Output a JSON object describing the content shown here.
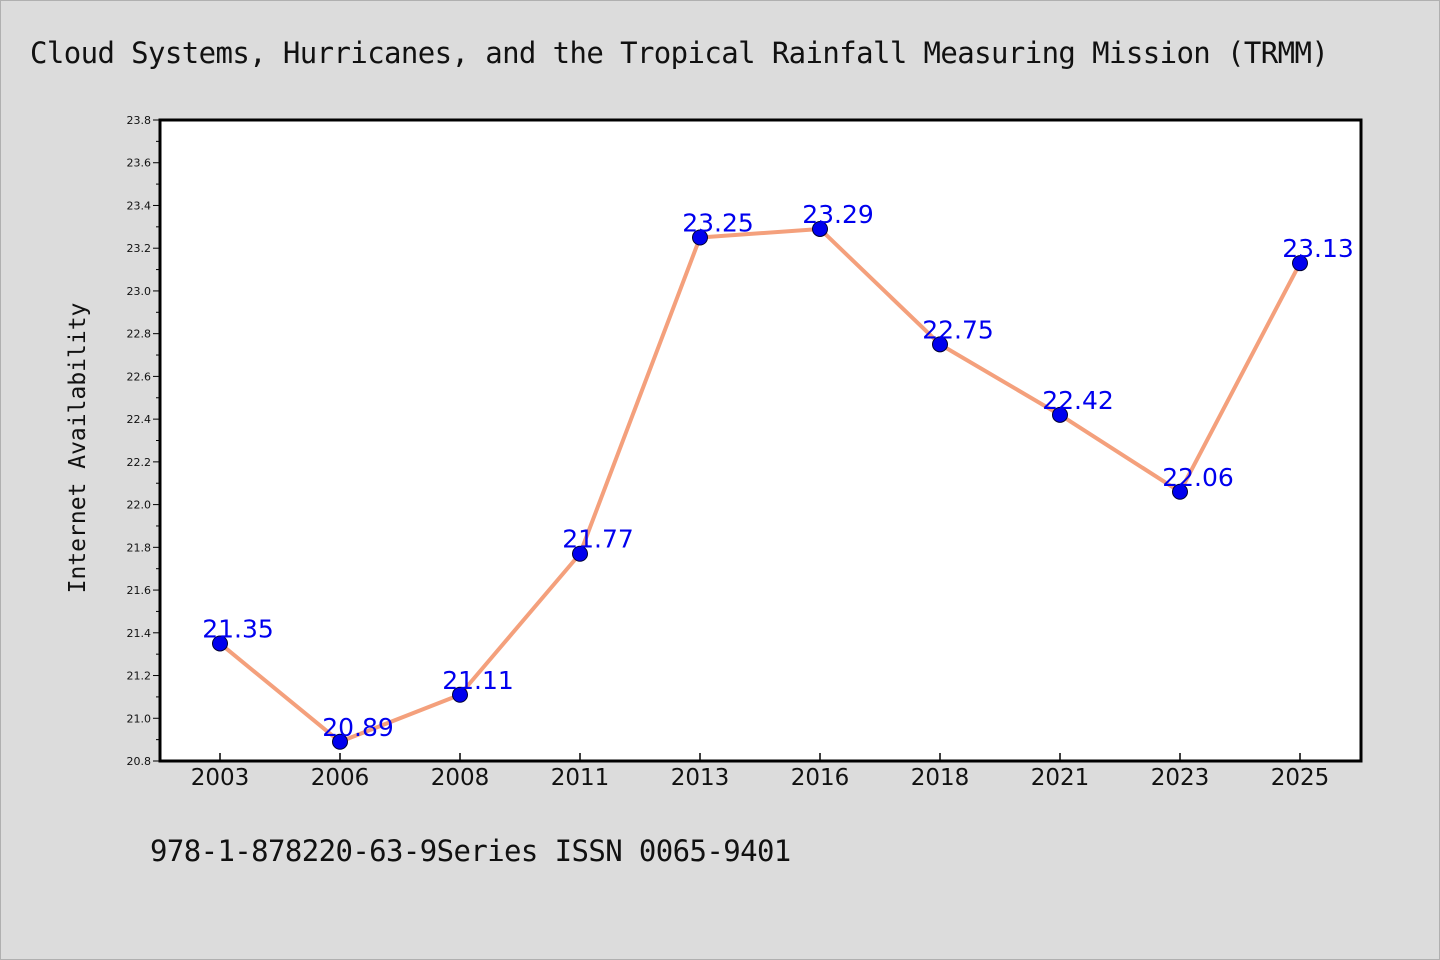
{
  "chart_data": {
    "type": "line",
    "title": "Cloud Systems, Hurricanes, and the Tropical Rainfall Measuring Mission (TRMM)",
    "footer": "978-1-878220-63-9Series ISSN 0065-9401",
    "xlabel": "",
    "ylabel": "Internet Availability",
    "categories": [
      "2003",
      "2006",
      "2008",
      "2011",
      "2013",
      "2016",
      "2018",
      "2021",
      "2023",
      "2025"
    ],
    "series": [
      {
        "values": [
          21.35,
          20.89,
          21.11,
          21.77,
          23.25,
          23.29,
          22.75,
          22.42,
          22.06,
          23.13
        ],
        "data_labels": [
          "21.35",
          "20.89",
          "21.11",
          "21.77",
          "23.25",
          "23.29",
          "22.75",
          "22.42",
          "22.06",
          "23.13"
        ],
        "line_color": "#f4a07c",
        "marker_color": "#0000ee"
      }
    ],
    "ylim": [
      20.8,
      23.8
    ],
    "yticks": [
      "20.8",
      "21.0",
      "21.2",
      "21.4",
      "21.6",
      "21.8",
      "22.0",
      "22.2",
      "22.4",
      "22.6",
      "22.8",
      "23.0",
      "23.2",
      "23.4",
      "23.6",
      "23.8"
    ],
    "grid": false,
    "legend": "none"
  }
}
